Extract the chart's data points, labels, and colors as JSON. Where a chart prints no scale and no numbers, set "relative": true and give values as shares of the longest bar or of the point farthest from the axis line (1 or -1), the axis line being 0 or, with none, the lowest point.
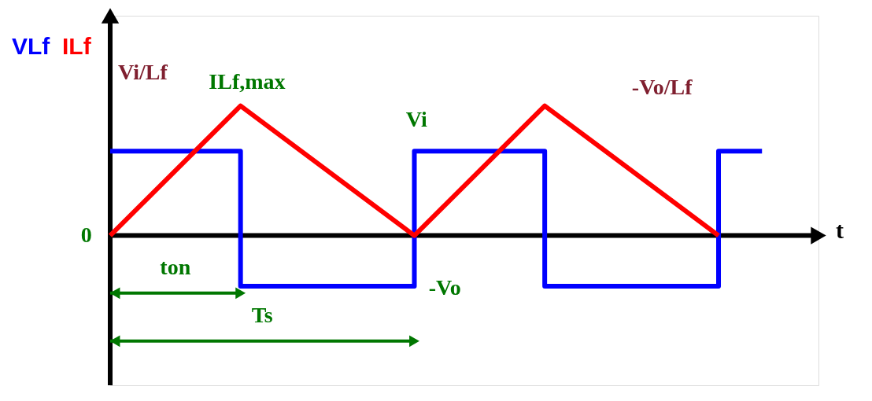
{
  "chart_data": {
    "type": "line",
    "relative": true,
    "xlabel": "t",
    "legend": "top left",
    "categories": [
      null,
      null,
      null,
      null,
      null,
      null,
      null,
      null,
      null,
      null,
      null,
      null,
      null,
      null,
      null,
      null
    ],
    "series": [
      {
        "name": "VLf",
        "type": "step",
        "color": "#0000ff",
        "values": [
          0.65,
          null,
          null,
          -0.39,
          null,
          null,
          null,
          0.65,
          null,
          null,
          -0.39,
          null,
          null,
          null,
          0.65,
          0.65
        ]
      },
      {
        "name": "ILf",
        "type": "line",
        "color": "#ff0000",
        "values": [
          0,
          null,
          null,
          1,
          null,
          null,
          null,
          0,
          null,
          null,
          1,
          null,
          null,
          null,
          0,
          null
        ]
      }
    ],
    "annotations": [
      "Vi/Lf",
      "ILf,max",
      "Vi",
      "-Vo",
      "-Vo/Lf",
      "0",
      "ton",
      "Ts"
    ]
  }
}
